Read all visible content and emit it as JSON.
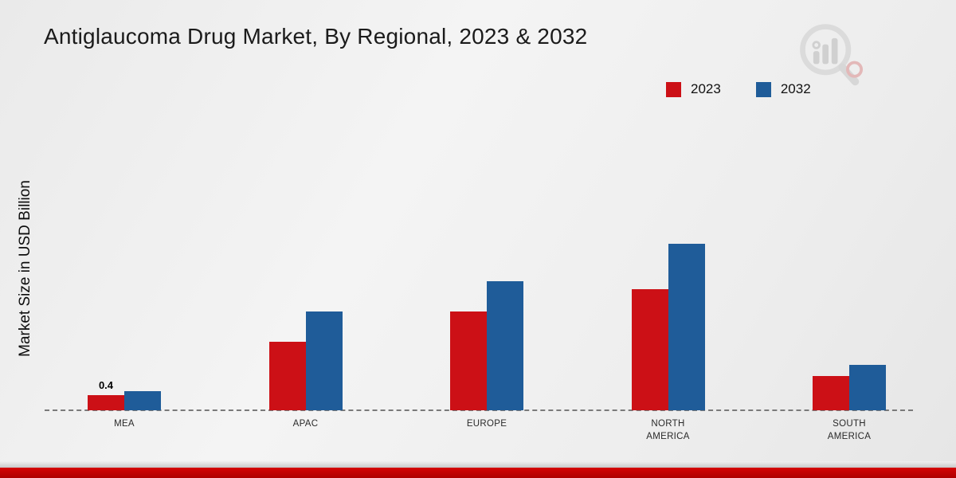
{
  "title": "Antiglaucoma Drug Market, By Regional, 2023 & 2032",
  "y_axis_label": "Market Size in USD Billion",
  "legend": {
    "items": [
      {
        "label": "2023",
        "color": "#cc1016"
      },
      {
        "label": "2032",
        "color": "#1f5c99"
      }
    ]
  },
  "chart_data": {
    "type": "bar",
    "title": "Antiglaucoma Drug Market, By Regional, 2023 & 2032",
    "ylabel": "Market Size in USD Billion",
    "categories": [
      "MEA",
      "APAC",
      "EUROPE",
      "NORTH AMERICA",
      "SOUTH AMERICA"
    ],
    "series": [
      {
        "name": "2023",
        "color": "#cc1016",
        "values": [
          0.4,
          1.8,
          2.6,
          3.2,
          0.9
        ]
      },
      {
        "name": "2032",
        "color": "#1f5c99",
        "values": [
          0.5,
          2.6,
          3.4,
          4.4,
          1.2
        ]
      }
    ],
    "data_labels": [
      {
        "category": "MEA",
        "series": "2023",
        "text": "0.4"
      }
    ],
    "ylim": [
      0,
      5
    ],
    "grid": false,
    "baseline_style": "dashed",
    "legend_position": "top-right"
  },
  "branding": {
    "logo_name": "market-research-magnifier-logo"
  }
}
